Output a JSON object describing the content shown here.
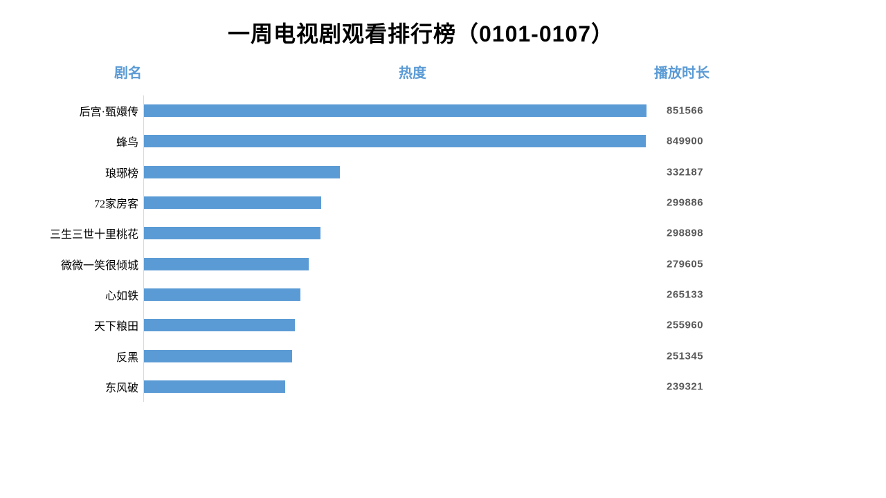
{
  "title": "一周电视剧观看排行榜（0101-0107）",
  "column_headers": {
    "name": "剧名",
    "heat": "热度",
    "duration": "播放时长"
  },
  "chart_data": {
    "type": "bar",
    "orientation": "horizontal",
    "title": "一周电视剧观看排行榜（0101-0107）",
    "xlabel": "热度",
    "ylabel": "剧名",
    "value_column_label": "播放时长",
    "categories": [
      "后宫·甄嬛传",
      "蜂鸟",
      "琅琊榜",
      "72家房客",
      "三生三世十里桃花",
      "微微一笑很倾城",
      "心如铁",
      "天下粮田",
      "反黑",
      "东风破"
    ],
    "values": [
      851566,
      849900,
      332187,
      299886,
      298898,
      279605,
      265133,
      255960,
      251345,
      239321
    ],
    "xlim": [
      0,
      851566
    ],
    "grid": false,
    "legend": "none",
    "data_labels": "shown right of plot",
    "bar_color": "#5B9BD5"
  },
  "colors": {
    "bar": "#5B9BD5",
    "header_text": "#5B9BD5",
    "value_text": "#595959",
    "axis_line": "#D9D9D9",
    "title_text": "#000000",
    "label_text": "#000000"
  }
}
